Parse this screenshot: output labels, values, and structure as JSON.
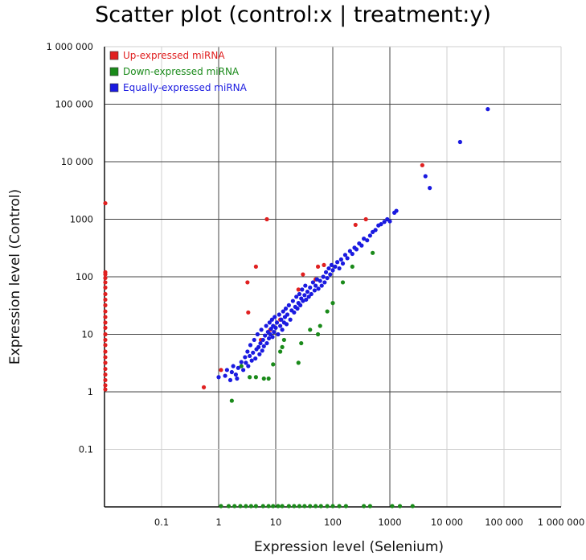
{
  "chart_data": {
    "type": "scatter",
    "title": "Scatter plot (control:x | treatment:y)",
    "xlabel": "Expression level (Selenium)",
    "ylabel": "Expression level (Control)",
    "x_scale": "log",
    "y_scale": "log",
    "xlim": [
      0.01,
      1000000
    ],
    "ylim": [
      0.01,
      1000000
    ],
    "x_tick_values": [
      0.1,
      1,
      10,
      100,
      1000,
      10000,
      100000,
      1000000
    ],
    "x_tick_labels": [
      "0.1",
      "1",
      "10",
      "100",
      "1000",
      "10 000",
      "100 000",
      "1 000 000"
    ],
    "y_tick_values": [
      0.1,
      1,
      10,
      100,
      1000,
      10000,
      100000,
      1000000
    ],
    "y_tick_labels": [
      "0.1",
      "1",
      "10",
      "100",
      "1000",
      "10 000",
      "100 000",
      "1 000 000"
    ],
    "grid": true,
    "legend_position": "top-left",
    "series": [
      {
        "name": "Up-expressed miRNA",
        "color": "#e02020",
        "points": [
          [
            0.01,
            1900
          ],
          [
            0.01,
            120
          ],
          [
            0.01,
            110
          ],
          [
            0.01,
            95
          ],
          [
            0.01,
            80
          ],
          [
            0.01,
            65
          ],
          [
            0.01,
            50
          ],
          [
            0.01,
            40
          ],
          [
            0.01,
            32
          ],
          [
            0.01,
            25
          ],
          [
            0.01,
            20
          ],
          [
            0.01,
            16
          ],
          [
            0.01,
            13
          ],
          [
            0.01,
            10
          ],
          [
            0.01,
            8
          ],
          [
            0.01,
            6.5
          ],
          [
            0.01,
            5
          ],
          [
            0.01,
            4
          ],
          [
            0.01,
            3.2
          ],
          [
            0.01,
            2.5
          ],
          [
            0.01,
            2
          ],
          [
            0.01,
            1.6
          ],
          [
            0.01,
            1.3
          ],
          [
            0.01,
            1.1
          ],
          [
            0.55,
            1.2
          ],
          [
            1.1,
            2.4
          ],
          [
            3.2,
            80
          ],
          [
            3.3,
            24
          ],
          [
            4.5,
            150
          ],
          [
            5.5,
            8
          ],
          [
            7,
            1000
          ],
          [
            8,
            12
          ],
          [
            12,
            18
          ],
          [
            25,
            60
          ],
          [
            30,
            110
          ],
          [
            50,
            90
          ],
          [
            55,
            150
          ],
          [
            70,
            160
          ],
          [
            250,
            800
          ],
          [
            380,
            1000
          ],
          [
            3700,
            8700
          ]
        ]
      },
      {
        "name": "Down-expressed miRNA",
        "color": "#1a8a1a",
        "points": [
          [
            1.7,
            0.7
          ],
          [
            2.5,
            2.8
          ],
          [
            3.5,
            1.8
          ],
          [
            4.5,
            1.8
          ],
          [
            6.2,
            1.7
          ],
          [
            7.5,
            1.7
          ],
          [
            9,
            3
          ],
          [
            12,
            5
          ],
          [
            13,
            6
          ],
          [
            14,
            8
          ],
          [
            25,
            3.2
          ],
          [
            28,
            7
          ],
          [
            40,
            12
          ],
          [
            55,
            10
          ],
          [
            60,
            14
          ],
          [
            80,
            25
          ],
          [
            100,
            35
          ],
          [
            150,
            80
          ],
          [
            220,
            150
          ],
          [
            500,
            260
          ],
          [
            1.1,
            0.01
          ],
          [
            1.5,
            0.01
          ],
          [
            1.9,
            0.01
          ],
          [
            2.4,
            0.01
          ],
          [
            3,
            0.01
          ],
          [
            3.7,
            0.01
          ],
          [
            4.5,
            0.01
          ],
          [
            6,
            0.01
          ],
          [
            7.5,
            0.01
          ],
          [
            9,
            0.01
          ],
          [
            11,
            0.01
          ],
          [
            13,
            0.01
          ],
          [
            17,
            0.01
          ],
          [
            21,
            0.01
          ],
          [
            26,
            0.01
          ],
          [
            32,
            0.01
          ],
          [
            40,
            0.01
          ],
          [
            50,
            0.01
          ],
          [
            62,
            0.01
          ],
          [
            80,
            0.01
          ],
          [
            100,
            0.01
          ],
          [
            130,
            0.01
          ],
          [
            170,
            0.01
          ],
          [
            350,
            0.01
          ],
          [
            450,
            0.01
          ],
          [
            1100,
            0.01
          ],
          [
            1500,
            0.01
          ],
          [
            2500,
            0.01
          ]
        ]
      },
      {
        "name": "Equally-expressed miRNA",
        "color": "#1a1ae0",
        "points": [
          [
            1,
            1.8
          ],
          [
            1.3,
            1.9
          ],
          [
            1.4,
            2.4
          ],
          [
            1.6,
            1.6
          ],
          [
            1.7,
            2.2
          ],
          [
            1.8,
            2.8
          ],
          [
            2,
            2
          ],
          [
            2.1,
            1.7
          ],
          [
            2.2,
            2.6
          ],
          [
            2.5,
            3.3
          ],
          [
            2.7,
            2.4
          ],
          [
            2.9,
            4
          ],
          [
            3,
            3.2
          ],
          [
            3.2,
            5
          ],
          [
            3.3,
            2.8
          ],
          [
            3.5,
            4.2
          ],
          [
            3.6,
            6.5
          ],
          [
            3.8,
            3.5
          ],
          [
            4,
            4.8
          ],
          [
            4.2,
            8
          ],
          [
            4.4,
            3.8
          ],
          [
            4.6,
            5.5
          ],
          [
            4.8,
            10
          ],
          [
            5,
            6
          ],
          [
            5.2,
            4.5
          ],
          [
            5.4,
            7
          ],
          [
            5.6,
            12
          ],
          [
            5.8,
            5.2
          ],
          [
            6,
            8
          ],
          [
            6.2,
            6.2
          ],
          [
            6.5,
            9.5
          ],
          [
            6.8,
            14
          ],
          [
            7,
            7
          ],
          [
            7.3,
            11
          ],
          [
            7.6,
            8.5
          ],
          [
            7.8,
            16
          ],
          [
            8,
            10
          ],
          [
            8.3,
            12.5
          ],
          [
            8.6,
            18
          ],
          [
            8.8,
            9
          ],
          [
            9,
            14
          ],
          [
            9.3,
            11
          ],
          [
            9.6,
            20
          ],
          [
            10,
            13
          ],
          [
            10.5,
            16
          ],
          [
            11,
            10
          ],
          [
            11.5,
            22
          ],
          [
            12,
            14
          ],
          [
            12.5,
            18
          ],
          [
            13,
            12
          ],
          [
            13.5,
            25
          ],
          [
            14,
            16
          ],
          [
            14.5,
            20
          ],
          [
            15,
            28
          ],
          [
            15.5,
            15
          ],
          [
            16,
            22
          ],
          [
            17,
            32
          ],
          [
            18,
            18
          ],
          [
            19,
            26
          ],
          [
            20,
            38
          ],
          [
            21,
            24
          ],
          [
            22,
            30
          ],
          [
            23,
            45
          ],
          [
            24,
            28
          ],
          [
            25,
            35
          ],
          [
            26,
            50
          ],
          [
            27,
            32
          ],
          [
            28,
            42
          ],
          [
            29,
            60
          ],
          [
            30,
            38
          ],
          [
            32,
            48
          ],
          [
            33,
            70
          ],
          [
            34,
            40
          ],
          [
            36,
            55
          ],
          [
            38,
            45
          ],
          [
            40,
            65
          ],
          [
            42,
            50
          ],
          [
            45,
            80
          ],
          [
            48,
            58
          ],
          [
            50,
            70
          ],
          [
            53,
            90
          ],
          [
            56,
            62
          ],
          [
            60,
            85
          ],
          [
            64,
            70
          ],
          [
            68,
            100
          ],
          [
            72,
            80
          ],
          [
            76,
            120
          ],
          [
            80,
            95
          ],
          [
            85,
            140
          ],
          [
            90,
            110
          ],
          [
            95,
            160
          ],
          [
            100,
            130
          ],
          [
            110,
            150
          ],
          [
            120,
            180
          ],
          [
            130,
            140
          ],
          [
            140,
            200
          ],
          [
            150,
            170
          ],
          [
            165,
            240
          ],
          [
            180,
            210
          ],
          [
            200,
            280
          ],
          [
            220,
            250
          ],
          [
            240,
            320
          ],
          [
            260,
            300
          ],
          [
            290,
            380
          ],
          [
            320,
            350
          ],
          [
            350,
            460
          ],
          [
            400,
            430
          ],
          [
            450,
            520
          ],
          [
            500,
            600
          ],
          [
            560,
            650
          ],
          [
            630,
            780
          ],
          [
            700,
            820
          ],
          [
            800,
            900
          ],
          [
            900,
            1000
          ],
          [
            1000,
            920
          ],
          [
            1200,
            1300
          ],
          [
            1300,
            1400
          ],
          [
            4200,
            5600
          ],
          [
            5000,
            3500
          ],
          [
            17000,
            22000
          ],
          [
            52000,
            82000
          ]
        ]
      }
    ]
  }
}
